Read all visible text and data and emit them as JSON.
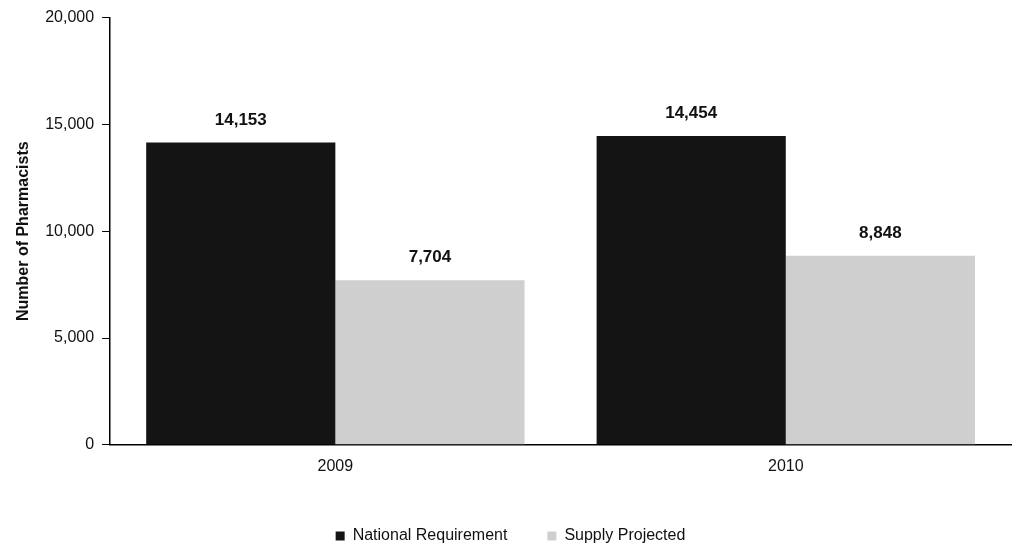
{
  "chart_data": {
    "type": "bar",
    "ylabel": "Number of Pharmacists",
    "categories": [
      "2009",
      "2010"
    ],
    "series": [
      {
        "name": "National Requirement",
        "color": "#141414",
        "values": [
          14153,
          14454
        ],
        "value_labels": [
          "14,153",
          "14,454"
        ]
      },
      {
        "name": "Supply Projected",
        "color": "#cfcfcf",
        "values": [
          7704,
          8848
        ],
        "value_labels": [
          "7,704",
          "8,848"
        ]
      }
    ],
    "ylim": [
      0,
      20000
    ],
    "yticks": [
      0,
      {
        "value": 5000,
        "label": "5,000"
      },
      {
        "value": 10000,
        "label": "10,000"
      },
      {
        "value": 15000,
        "label": "15,000"
      },
      {
        "value": 20000,
        "label": "20,000"
      }
    ],
    "grid": false,
    "legend": "bottom"
  }
}
